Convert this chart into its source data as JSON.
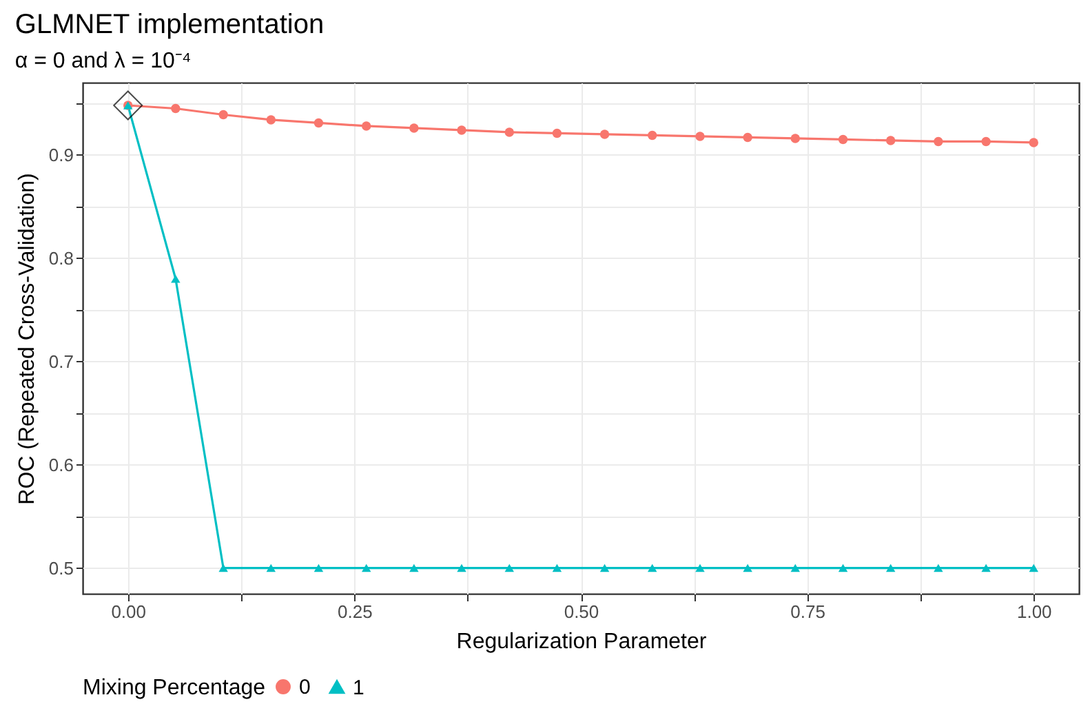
{
  "chart_data": {
    "type": "line",
    "title": "GLMNET implementation",
    "subtitle": "α = 0 and λ = 10⁻⁴",
    "xlabel": "Regularization Parameter",
    "ylabel": "ROC (Repeated Cross-Validation)",
    "legend_title": "Mixing Percentage",
    "x": [
      0,
      0.0526,
      0.1053,
      0.1579,
      0.2105,
      0.2632,
      0.3158,
      0.3684,
      0.4211,
      0.4737,
      0.5263,
      0.5789,
      0.6316,
      0.6842,
      0.7368,
      0.7895,
      0.8421,
      0.8947,
      0.9474,
      1
    ],
    "series": [
      {
        "name": "0",
        "color": "#f8766d",
        "marker": "circle",
        "values": [
          0.948,
          0.945,
          0.939,
          0.934,
          0.931,
          0.928,
          0.926,
          0.924,
          0.922,
          0.921,
          0.92,
          0.919,
          0.918,
          0.917,
          0.916,
          0.915,
          0.914,
          0.913,
          0.913,
          0.912
        ]
      },
      {
        "name": "1",
        "color": "#00bfc4",
        "marker": "triangle",
        "values": [
          0.948,
          0.78,
          0.5,
          0.5,
          0.5,
          0.5,
          0.5,
          0.5,
          0.5,
          0.5,
          0.5,
          0.5,
          0.5,
          0.5,
          0.5,
          0.5,
          0.5,
          0.5,
          0.5,
          0.5
        ]
      },
      {
        "type": "scatter",
        "color": "#000000",
        "marker": "diamond",
        "x": [
          0
        ],
        "values": [
          0.948
        ]
      }
    ],
    "xlim": [
      -0.05,
      1.05
    ],
    "xticks": [
      {
        "value": 0,
        "label": "0.00"
      },
      {
        "value": 0.125,
        "label": null
      },
      {
        "value": 0.25,
        "label": "0.25"
      },
      {
        "value": 0.375,
        "label": null
      },
      {
        "value": 0.5,
        "label": "0.50"
      },
      {
        "value": 0.625,
        "label": null
      },
      {
        "value": 0.75,
        "label": "0.75"
      },
      {
        "value": 0.875,
        "label": null
      },
      {
        "value": 1,
        "label": "1.00"
      }
    ],
    "ylim": [
      0.475,
      0.97
    ],
    "yticks": [
      {
        "value": 0.5,
        "label": "0.5"
      },
      {
        "value": 0.55,
        "label": null
      },
      {
        "value": 0.6,
        "label": "0.6"
      },
      {
        "value": 0.65,
        "label": null
      },
      {
        "value": 0.7,
        "label": "0.7"
      },
      {
        "value": 0.75,
        "label": null
      },
      {
        "value": 0.8,
        "label": "0.8"
      },
      {
        "value": 0.85,
        "label": null
      },
      {
        "value": 0.9,
        "label": "0.9"
      },
      {
        "value": 0.95,
        "label": null
      }
    ],
    "grid": true,
    "legend": "bottom",
    "line_style": "solid"
  }
}
